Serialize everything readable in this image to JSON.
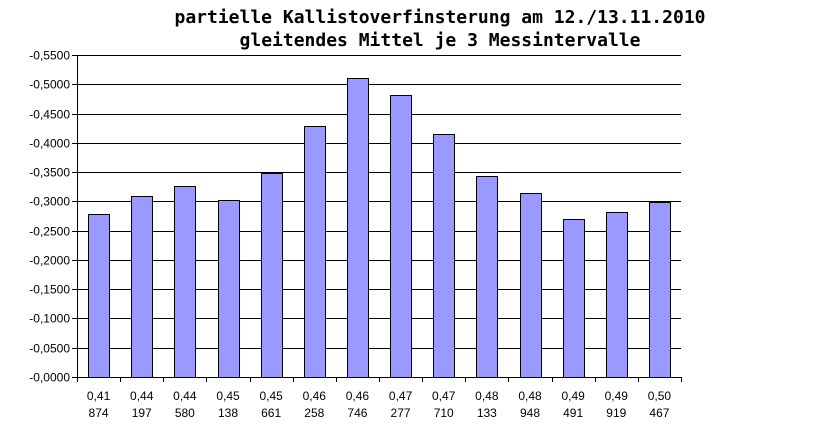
{
  "chart_data": {
    "type": "bar",
    "title": "partielle Kallistoverfinsterung am 12./13.11.2010",
    "subtitle": "gleitendes Mittel je 3 Messintervalle",
    "xlabel": "",
    "ylabel": "",
    "categories": [
      [
        "0,41",
        "874"
      ],
      [
        "0,44",
        "197"
      ],
      [
        "0,44",
        "580"
      ],
      [
        "0,45",
        "138"
      ],
      [
        "0,45",
        "661"
      ],
      [
        "0,46",
        "258"
      ],
      [
        "0,46",
        "746"
      ],
      [
        "0,47",
        "277"
      ],
      [
        "0,47",
        "710"
      ],
      [
        "0,48",
        "133"
      ],
      [
        "0,48",
        "948"
      ],
      [
        "0,49",
        "491"
      ],
      [
        "0,49",
        "919"
      ],
      [
        "0,50",
        "467"
      ]
    ],
    "values": [
      -0.278,
      -0.31,
      -0.326,
      -0.302,
      -0.348,
      -0.429,
      -0.511,
      -0.482,
      -0.415,
      -0.344,
      -0.314,
      -0.27,
      -0.282,
      -0.299
    ],
    "ylim": [
      -0.55,
      0.0
    ],
    "y_axis_inverted": true,
    "yticks": [
      "-0,5500",
      "-0,5000",
      "-0,4500",
      "-0,4000",
      "-0,3500",
      "-0,3000",
      "-0,2500",
      "-0,2000",
      "-0,1500",
      "-0,1000",
      "-0,0500",
      "-0,0000"
    ],
    "ytick_values": [
      -0.55,
      -0.5,
      -0.45,
      -0.4,
      -0.35,
      -0.3,
      -0.25,
      -0.2,
      -0.15,
      -0.1,
      -0.05,
      0.0
    ],
    "grid": true,
    "legend": "none",
    "colors": {
      "bar_fill": "#9999ff",
      "bar_stroke": "#000000",
      "grid": "#000000"
    }
  }
}
